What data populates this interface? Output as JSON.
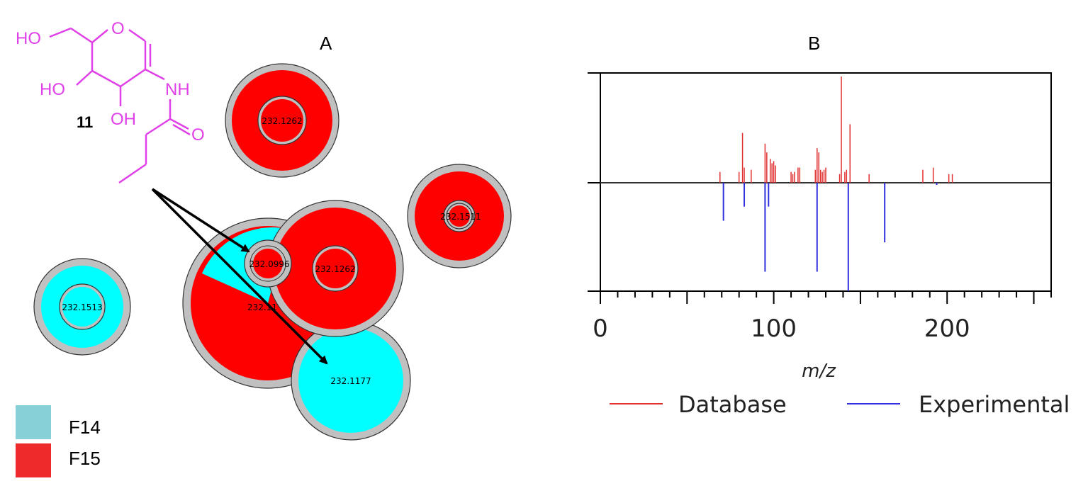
{
  "panel_labels": {
    "a": "A",
    "b": "B"
  },
  "molecule": {
    "compound_number": "11",
    "labels": {
      "ho_top": "HO",
      "o_ring": "O",
      "ho_mid": "HO",
      "nh": "NH",
      "oh": "OH",
      "o_carbonyl": "O"
    },
    "color": "#e040e8"
  },
  "network": {
    "nodes": [
      {
        "label": "232.1262",
        "f14": 0.0,
        "f15": 1.0
      },
      {
        "label": "232.1511",
        "f14": 0.0,
        "f15": 1.0
      },
      {
        "label": "232.1513",
        "f14": 1.0,
        "f15": 0.0
      },
      {
        "label": "232.11",
        "f14": 0.1,
        "f15": 0.9
      },
      {
        "label": "232.0996",
        "f14": 0.0,
        "f15": 1.0
      },
      {
        "label": "232.1262",
        "f14": 0.0,
        "f15": 1.0
      },
      {
        "label": "232.1177",
        "f14": 1.0,
        "f15": 0.0
      }
    ],
    "legend": [
      {
        "label": "F14",
        "color": "#88d0d8"
      },
      {
        "label": "F15",
        "color": "#ee2a2a"
      }
    ],
    "colors": {
      "f14": "#00ffff",
      "f15": "#ff0000",
      "ring": "#c0c0c0"
    }
  },
  "chart_data": {
    "type": "bar",
    "title": "",
    "xlabel": "m/z",
    "ylabel": "",
    "xlim": [
      0,
      260
    ],
    "ylim": [
      -1,
      1
    ],
    "xticks": [
      "0",
      "100",
      "200"
    ],
    "xtick_values": [
      0,
      100,
      200
    ],
    "series": [
      {
        "name": "Database",
        "color": "#e03030",
        "x": [
          69,
          80,
          82,
          83,
          87,
          95,
          96,
          98,
          99,
          100,
          101,
          110,
          111,
          112,
          114,
          115,
          124,
          125,
          126,
          127,
          128,
          129,
          130,
          138,
          139,
          141,
          142,
          144,
          155,
          186,
          192,
          201,
          203
        ],
        "values": [
          0.1,
          0.1,
          0.46,
          0.14,
          0.12,
          0.36,
          0.28,
          0.22,
          0.18,
          0.2,
          0.16,
          0.1,
          0.08,
          0.1,
          0.14,
          0.14,
          0.12,
          0.32,
          0.28,
          0.12,
          0.1,
          0.12,
          0.14,
          0.08,
          0.98,
          0.1,
          0.12,
          0.54,
          0.08,
          0.12,
          0.14,
          0.08,
          0.08
        ]
      },
      {
        "name": "Experimental",
        "color": "#3030e0",
        "x": [
          71,
          83,
          95,
          97,
          125,
          143,
          164,
          194
        ],
        "values": [
          -0.35,
          -0.22,
          -0.82,
          -0.22,
          -0.82,
          -1.0,
          -0.55,
          -0.02
        ]
      }
    ]
  }
}
